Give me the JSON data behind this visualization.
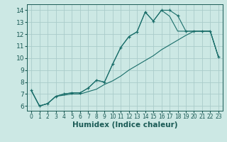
{
  "xlabel": "Humidex (Indice chaleur)",
  "bg_color": "#cce8e4",
  "grid_color": "#aaccca",
  "line_color": "#1a6e6a",
  "xlim": [
    -0.5,
    23.5
  ],
  "ylim": [
    5.6,
    14.5
  ],
  "xticks": [
    0,
    1,
    2,
    3,
    4,
    5,
    6,
    7,
    8,
    9,
    10,
    11,
    12,
    13,
    14,
    15,
    16,
    17,
    18,
    19,
    20,
    21,
    22,
    23
  ],
  "yticks": [
    6,
    7,
    8,
    9,
    10,
    11,
    12,
    13,
    14
  ],
  "line1_x": [
    0,
    1,
    2,
    3,
    4,
    5,
    6,
    7,
    8,
    9,
    10,
    11,
    12,
    13,
    14,
    15,
    16,
    17,
    18,
    19,
    20,
    21,
    22,
    23
  ],
  "line1_y": [
    7.3,
    6.0,
    6.2,
    6.8,
    7.0,
    7.1,
    7.1,
    7.5,
    8.15,
    8.0,
    9.5,
    10.9,
    11.8,
    12.2,
    13.85,
    13.1,
    14.0,
    14.0,
    13.55,
    12.25,
    12.25,
    12.25,
    12.25,
    10.1
  ],
  "line2_x": [
    0,
    1,
    2,
    3,
    4,
    5,
    6,
    7,
    8,
    9,
    10,
    11,
    12,
    13,
    14,
    15,
    16,
    17,
    18,
    19,
    20,
    21,
    22,
    23
  ],
  "line2_y": [
    7.3,
    6.0,
    6.2,
    6.8,
    7.0,
    7.1,
    7.1,
    7.5,
    8.15,
    8.0,
    9.5,
    10.9,
    11.8,
    12.2,
    13.85,
    13.1,
    14.0,
    13.5,
    12.25,
    12.25,
    12.25,
    12.25,
    12.25,
    10.1
  ],
  "line3_x": [
    0,
    1,
    2,
    3,
    4,
    5,
    6,
    7,
    8,
    9,
    10,
    11,
    12,
    13,
    14,
    15,
    16,
    17,
    18,
    19,
    20,
    21,
    22,
    23
  ],
  "line3_y": [
    7.3,
    6.0,
    6.2,
    6.8,
    6.9,
    7.0,
    7.0,
    7.2,
    7.4,
    7.8,
    8.1,
    8.5,
    9.0,
    9.4,
    9.8,
    10.2,
    10.7,
    11.1,
    11.5,
    11.9,
    12.25,
    12.25,
    12.25,
    10.1
  ]
}
